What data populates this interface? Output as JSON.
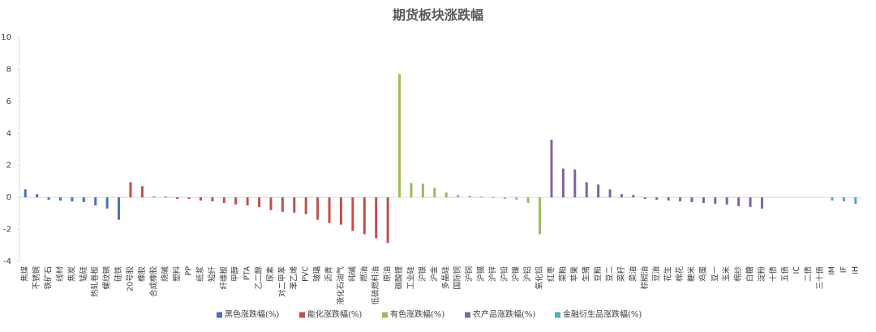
{
  "chart_data": {
    "type": "bar",
    "title": "期货板块涨跌幅",
    "categories": [
      "焦煤",
      "不锈钢",
      "铁矿石",
      "线材",
      "焦炭",
      "锰硅",
      "热轧卷板",
      "螺纹钢",
      "硅铁",
      "20号胶",
      "橡胶",
      "合成橡胶",
      "烧碱",
      "塑料",
      "PP",
      "纸浆",
      "短纤",
      "纤维板",
      "甲醇",
      "PTA",
      "乙二醇",
      "尿素",
      "对二甲苯",
      "苯乙烯",
      "PVC",
      "玻璃",
      "沥青",
      "液化石油气",
      "纯碱",
      "燃油",
      "低硫燃料油",
      "原油",
      "碳酸锂",
      "工业硅",
      "沪银",
      "沪金",
      "多晶硅",
      "国际铜",
      "沪铜",
      "沪锡",
      "沪锌",
      "沪铅",
      "沪镍",
      "沪铝",
      "氧化铝",
      "红枣",
      "菜粕",
      "苹果",
      "生猪",
      "豆粕",
      "豆二",
      "菜籽",
      "菜油",
      "棕榈油",
      "豆油",
      "花生",
      "棉花",
      "粳米",
      "鸡蛋",
      "豆一",
      "玉米",
      "棉纱",
      "白糖",
      "淀粉",
      "十债",
      "五债",
      "IC",
      "二债",
      "三十债",
      "IM",
      "IF",
      "IH"
    ],
    "series": [
      {
        "name": "黑色涨跌幅(%)",
        "color": "#4472c4",
        "values": [
          0.5,
          0.2,
          -0.15,
          -0.2,
          -0.25,
          -0.3,
          -0.5,
          -0.7,
          -1.4,
          null,
          null,
          null,
          null,
          null,
          null,
          null,
          null,
          null,
          null,
          null,
          null,
          null,
          null,
          null,
          null,
          null,
          null,
          null,
          null,
          null,
          null,
          null,
          null,
          null,
          null,
          null,
          null,
          null,
          null,
          null,
          null,
          null,
          null,
          null,
          null,
          null,
          null,
          null,
          null,
          null,
          null,
          null,
          null,
          null,
          null,
          null,
          null,
          null,
          null,
          null,
          null,
          null,
          null,
          null,
          null,
          null,
          null,
          null,
          null,
          null,
          null,
          null
        ]
      },
      {
        "name": "能化涨跌幅(%)",
        "color": "#c0504d",
        "values": [
          null,
          null,
          null,
          null,
          null,
          null,
          null,
          null,
          null,
          0.95,
          0.7,
          0.05,
          0.05,
          -0.1,
          -0.1,
          -0.2,
          -0.25,
          -0.35,
          -0.45,
          -0.5,
          -0.6,
          -0.8,
          -0.9,
          -0.95,
          -1.05,
          -1.4,
          -1.6,
          -1.7,
          -2.1,
          -2.3,
          -2.55,
          -2.85,
          null,
          null,
          null,
          null,
          null,
          null,
          null,
          null,
          null,
          null,
          null,
          null,
          null,
          null,
          null,
          null,
          null,
          null,
          null,
          null,
          null,
          null,
          null,
          null,
          null,
          null,
          null,
          null,
          null,
          null,
          null,
          null,
          null,
          null,
          null,
          null,
          null,
          null,
          null,
          null
        ]
      },
      {
        "name": "有色涨跌幅(%)",
        "color": "#9bbb59",
        "values": [
          null,
          null,
          null,
          null,
          null,
          null,
          null,
          null,
          null,
          null,
          null,
          null,
          null,
          null,
          null,
          null,
          null,
          null,
          null,
          null,
          null,
          null,
          null,
          null,
          null,
          null,
          null,
          null,
          null,
          null,
          null,
          null,
          7.7,
          0.9,
          0.85,
          0.6,
          0.3,
          0.15,
          0.1,
          0.05,
          -0.05,
          -0.1,
          -0.15,
          -0.35,
          -2.3,
          null,
          null,
          null,
          null,
          null,
          null,
          null,
          null,
          null,
          null,
          null,
          null,
          null,
          null,
          null,
          null,
          null,
          null,
          null,
          null,
          null,
          null,
          null,
          null,
          null,
          null,
          null
        ]
      },
      {
        "name": "农产品涨跌幅(%)",
        "color": "#8064a2",
        "values": [
          null,
          null,
          null,
          null,
          null,
          null,
          null,
          null,
          null,
          null,
          null,
          null,
          null,
          null,
          null,
          null,
          null,
          null,
          null,
          null,
          null,
          null,
          null,
          null,
          null,
          null,
          null,
          null,
          null,
          null,
          null,
          null,
          null,
          null,
          null,
          null,
          null,
          null,
          null,
          null,
          null,
          null,
          null,
          null,
          null,
          3.6,
          1.8,
          1.75,
          0.95,
          0.8,
          0.5,
          0.2,
          0.15,
          -0.1,
          -0.15,
          -0.2,
          -0.25,
          -0.3,
          -0.35,
          -0.4,
          -0.45,
          -0.55,
          -0.6,
          -0.7,
          null,
          null,
          null,
          null,
          null,
          null,
          null,
          null
        ]
      },
      {
        "name": "金融衍生品涨跌幅(%)",
        "color": "#4bacc6",
        "values": [
          null,
          null,
          null,
          null,
          null,
          null,
          null,
          null,
          null,
          null,
          null,
          null,
          null,
          null,
          null,
          null,
          null,
          null,
          null,
          null,
          null,
          null,
          null,
          null,
          null,
          null,
          null,
          null,
          null,
          null,
          null,
          null,
          null,
          null,
          null,
          null,
          null,
          null,
          null,
          null,
          null,
          null,
          null,
          null,
          null,
          null,
          null,
          null,
          null,
          null,
          null,
          null,
          null,
          null,
          null,
          null,
          null,
          null,
          null,
          null,
          null,
          null,
          null,
          null,
          0,
          0,
          0,
          0,
          0,
          -0.2,
          -0.25,
          -0.4
        ]
      }
    ],
    "ylim": [
      -4,
      10
    ],
    "yticks": [
      -4,
      -2,
      0,
      2,
      4,
      6,
      8,
      10
    ],
    "legend": "bottom"
  }
}
